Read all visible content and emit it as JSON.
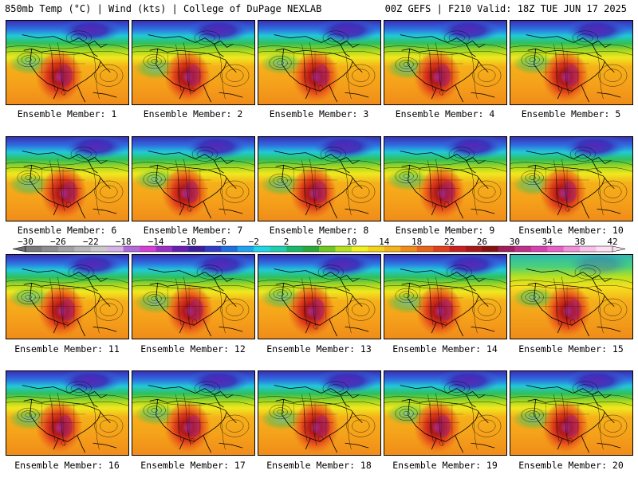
{
  "header": {
    "left": "850mb Temp (°C) | Wind (kts) | College of DuPage NEXLAB",
    "right": "00Z GEFS | F210 Valid: 18Z TUE JUN 17 2025"
  },
  "members": [
    "Ensemble Member: 1",
    "Ensemble Member: 2",
    "Ensemble Member: 3",
    "Ensemble Member: 4",
    "Ensemble Member: 5",
    "Ensemble Member: 6",
    "Ensemble Member: 7",
    "Ensemble Member: 8",
    "Ensemble Member: 9",
    "Ensemble Member: 10",
    "Ensemble Member: 11",
    "Ensemble Member: 12",
    "Ensemble Member: 13",
    "Ensemble Member: 14",
    "Ensemble Member: 15",
    "Ensemble Member: 16",
    "Ensemble Member: 17",
    "Ensemble Member: 18",
    "Ensemble Member: 19",
    "Ensemble Member: 20"
  ],
  "colorbar": {
    "labels": [
      "-30",
      "-26",
      "-22",
      "-18",
      "-14",
      "-10",
      "-6",
      "-2",
      "2",
      "6",
      "10",
      "14",
      "18",
      "22",
      "26",
      "30",
      "34",
      "38",
      "42"
    ],
    "colors": [
      "#7a7a7a",
      "#8e8e8e",
      "#a2a2a2",
      "#b6b6b6",
      "#c9c9c9",
      "#d6b3e6",
      "#b36ad9",
      "#d53fd6",
      "#9a2fc2",
      "#6a1fb3",
      "#3b1f9e",
      "#2f3cc8",
      "#1f6fe0",
      "#1fa3f0",
      "#1fd6e8",
      "#1fd0b0",
      "#18b86a",
      "#2aa83a",
      "#6ec81f",
      "#b4e01f",
      "#f0f01f",
      "#f5d21a",
      "#f5b21a",
      "#f08c1a",
      "#e8641a",
      "#e0401a",
      "#c81f1f",
      "#a81818",
      "#881212",
      "#a01f5a",
      "#c0308a",
      "#d840b0",
      "#e860c8",
      "#f090d8",
      "#f8c0e8",
      "#fce0f2"
    ]
  }
}
